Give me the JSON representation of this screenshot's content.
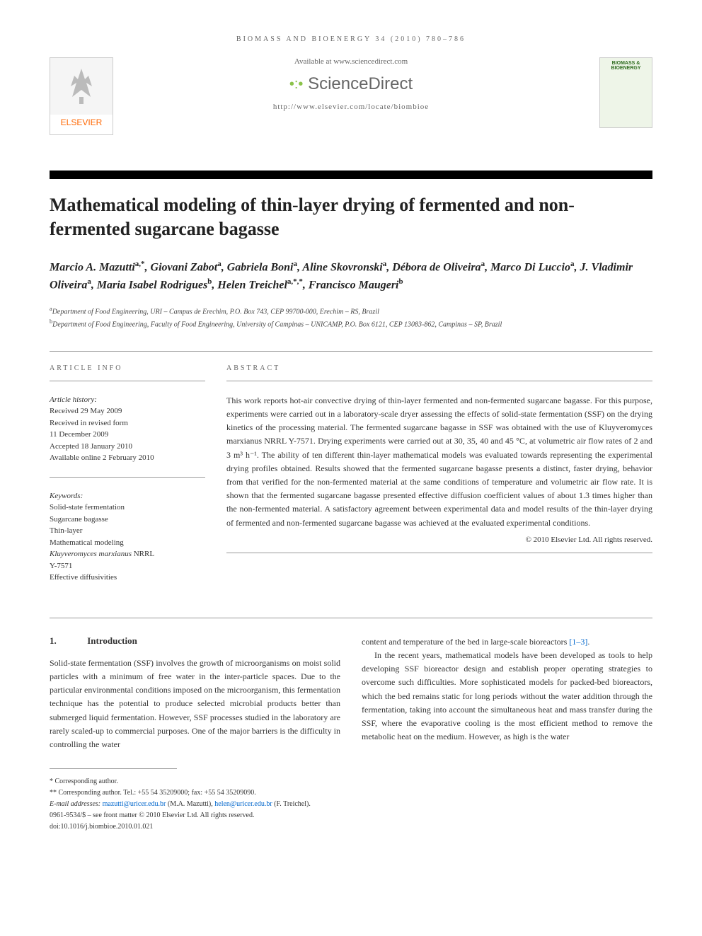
{
  "header": {
    "journal_ref": "BIOMASS AND BIOENERGY 34 (2010) 780–786",
    "availability": "Available at www.sciencedirect.com",
    "publisher_name": "ELSEVIER",
    "platform_name": "ScienceDirect",
    "journal_url": "http://www.elsevier.com/locate/biombioe",
    "cover_title": "BIOMASS & BIOENERGY"
  },
  "title": "Mathematical modeling of thin-layer drying of fermented and non-fermented sugarcane bagasse",
  "authors_html": "Marcio A. Mazutti<sup>a,*</sup>, Giovani Zabot<sup>a</sup>, Gabriela Boni<sup>a</sup>, Aline Skovronski<sup>a</sup>, Débora de Oliveira<sup>a</sup>, Marco Di Luccio<sup>a</sup>, J. Vladimir Oliveira<sup>a</sup>, Maria Isabel Rodrigues<sup>b</sup>, Helen Treichel<sup>a,*,*</sup>, Francisco Maugeri<sup>b</sup>",
  "affiliations": [
    {
      "sup": "a",
      "text": "Department of Food Engineering, URI – Campus de Erechim, P.O. Box 743, CEP 99700-000, Erechim – RS, Brazil"
    },
    {
      "sup": "b",
      "text": "Department of Food Engineering, Faculty of Food Engineering, University of Campinas – UNICAMP, P.O. Box 6121, CEP 13083-862, Campinas – SP, Brazil"
    }
  ],
  "article_info": {
    "label": "ARTICLE INFO",
    "history_label": "Article history:",
    "history": [
      "Received 29 May 2009",
      "Received in revised form",
      "11 December 2009",
      "Accepted 18 January 2010",
      "Available online 2 February 2010"
    ],
    "keywords_label": "Keywords:",
    "keywords": [
      "Solid-state fermentation",
      "Sugarcane bagasse",
      "Thin-layer",
      "Mathematical modeling",
      "Kluyveromyces marxianus NRRL",
      "Y-7571",
      "Effective diffusivities"
    ]
  },
  "abstract": {
    "label": "ABSTRACT",
    "text": "This work reports hot-air convective drying of thin-layer fermented and non-fermented sugarcane bagasse. For this purpose, experiments were carried out in a laboratory-scale dryer assessing the effects of solid-state fermentation (SSF) on the drying kinetics of the processing material. The fermented sugarcane bagasse in SSF was obtained with the use of Kluyveromyces marxianus NRRL Y-7571. Drying experiments were carried out at 30, 35, 40 and 45 °C, at volumetric air flow rates of 2 and 3 m³ h⁻¹. The ability of ten different thin-layer mathematical models was evaluated towards representing the experimental drying profiles obtained. Results showed that the fermented sugarcane bagasse presents a distinct, faster drying, behavior from that verified for the non-fermented material at the same conditions of temperature and volumetric air flow rate. It is shown that the fermented sugarcane bagasse presented effective diffusion coefficient values of about 1.3 times higher than the non-fermented material. A satisfactory agreement between experimental data and model results of the thin-layer drying of fermented and non-fermented sugarcane bagasse was achieved at the evaluated experimental conditions.",
    "copyright": "© 2010 Elsevier Ltd. All rights reserved."
  },
  "section1": {
    "num": "1.",
    "title": "Introduction",
    "para1": "Solid-state fermentation (SSF) involves the growth of microorganisms on moist solid particles with a minimum of free water in the inter-particle spaces. Due to the particular environmental conditions imposed on the microorganism, this fermentation technique has the potential to produce selected microbial products better than submerged liquid fermentation. However, SSF processes studied in the laboratory are rarely scaled-up to commercial purposes. One of the major barriers is the difficulty in controlling the water",
    "para2_pre": "content and temperature of the bed in large-scale bioreactors ",
    "para2_ref": "[1–3]",
    "para2_post": ".",
    "para3": "In the recent years, mathematical models have been developed as tools to help developing SSF bioreactor design and establish proper operating strategies to overcome such difficulties. More sophisticated models for packed-bed bioreactors, which the bed remains static for long periods without the water addition through the fermentation, taking into account the simultaneous heat and mass transfer during the SSF, where the evaporative cooling is the most efficient method to remove the metabolic heat on the medium. However, as high is the water"
  },
  "footer": {
    "corr1": "* Corresponding author.",
    "corr2": "** Corresponding author. Tel.: +55 54 35209000; fax: +55 54 35209090.",
    "email_label": "E-mail addresses: ",
    "email1": "mazutti@uricer.edu.br",
    "email1_name": " (M.A. Mazutti), ",
    "email2": "helen@uricer.edu.br",
    "email2_name": " (F. Treichel).",
    "issn": "0961-9534/$ – see front matter © 2010 Elsevier Ltd. All rights reserved.",
    "doi": "doi:10.1016/j.biombioe.2010.01.021"
  },
  "colors": {
    "link": "#0066cc",
    "elsevier_orange": "#ff6600",
    "sd_green": "#8bc34a",
    "cover_green": "#2d6b1e",
    "cover_bg": "#eef5e8"
  }
}
